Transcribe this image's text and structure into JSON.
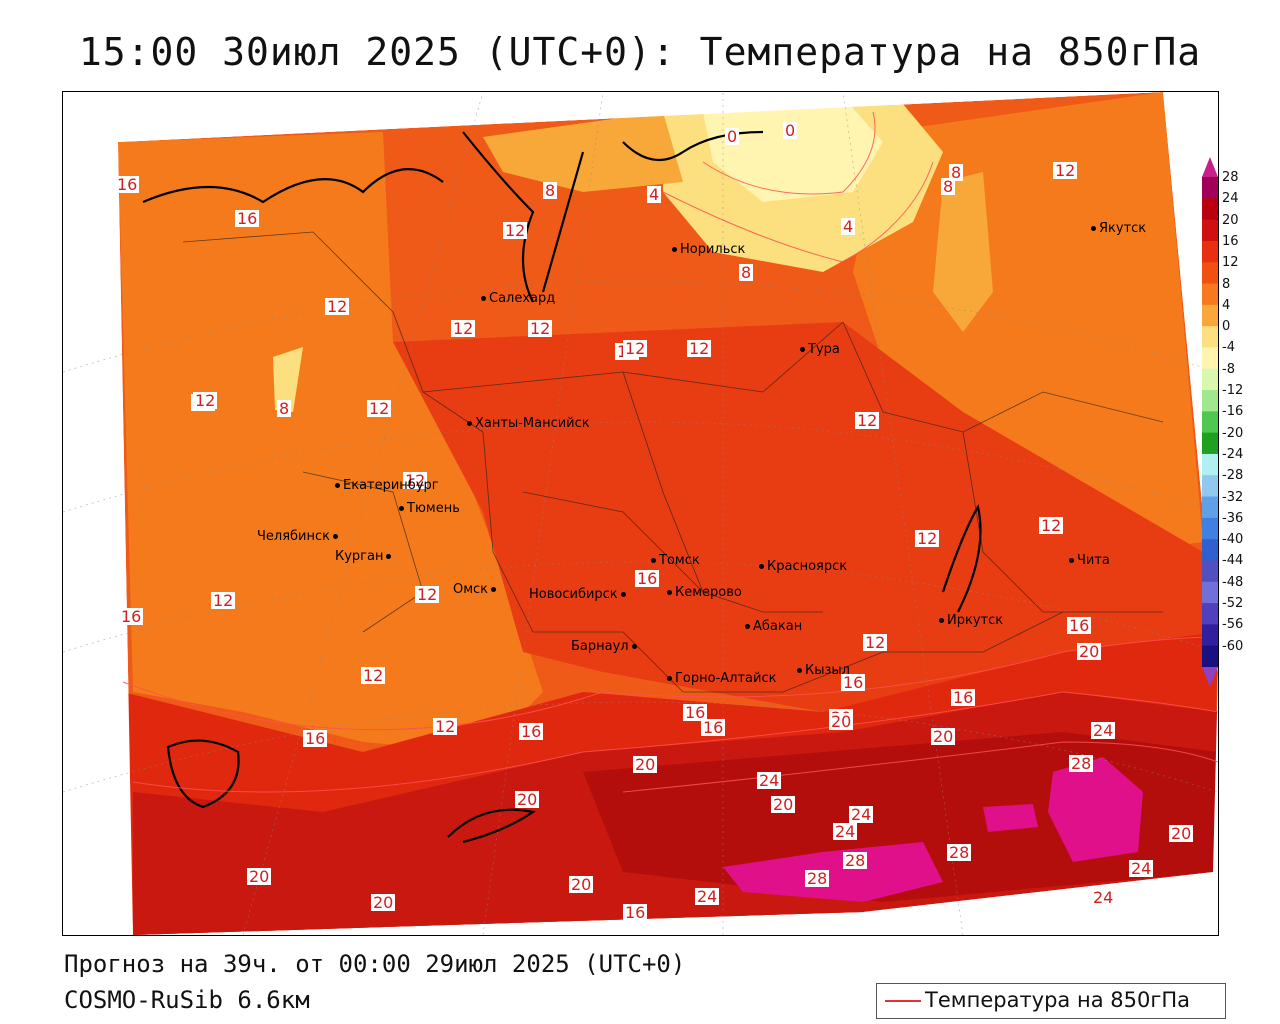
{
  "title": "15:00 30июл 2025 (UTC+0): Температура на 850гПа",
  "footer": {
    "forecast": "Прогноз на 39ч. от 00:00 29июл 2025 (UTC+0)",
    "model": "COSMO-RuSib 6.6км"
  },
  "legend": {
    "label": "Температура на 850гПа",
    "line_color": "#e83030"
  },
  "colorbar": {
    "ticks": [
      "28",
      "24",
      "20",
      "16",
      "12",
      "8",
      "4",
      "0",
      "-4",
      "-8",
      "-12",
      "-16",
      "-20",
      "-24",
      "-28",
      "-32",
      "-36",
      "-40",
      "-44",
      "-48",
      "-52",
      "-56",
      "-60"
    ],
    "colors": [
      "#a0005a",
      "#b8000e",
      "#d01010",
      "#e83010",
      "#f05010",
      "#f87820",
      "#f8a838",
      "#fce080",
      "#fff4b0",
      "#d8f8b0",
      "#a0e890",
      "#50c850",
      "#20a020",
      "#b0f0f0",
      "#90c8f0",
      "#60a0e8",
      "#4080e0",
      "#3060d0",
      "#5050c0",
      "#7070d8",
      "#5040c0",
      "#3020a0",
      "#1a1080"
    ],
    "top_arrow_color": "#c8208a",
    "bottom_arrow_color": "#9040c0"
  },
  "cities": [
    {
      "name": "Якутск"
    },
    {
      "name": "Норильск"
    },
    {
      "name": "Салехард"
    },
    {
      "name": "Тура"
    },
    {
      "name": "Ханты-Мансийск"
    },
    {
      "name": "Екатеринбург"
    },
    {
      "name": "Тюмень"
    },
    {
      "name": "Челябинск"
    },
    {
      "name": "Курган"
    },
    {
      "name": "Омск"
    },
    {
      "name": "Томск"
    },
    {
      "name": "Новосибирск"
    },
    {
      "name": "Кемерово"
    },
    {
      "name": "Красноярск"
    },
    {
      "name": "Абакан"
    },
    {
      "name": "Барнаул"
    },
    {
      "name": "Горно-Алтайск"
    },
    {
      "name": "Кызыл"
    },
    {
      "name": "Иркутск"
    },
    {
      "name": "Чита"
    }
  ],
  "isotherm_labels": [
    "16",
    "16",
    "12",
    "12",
    "12",
    "12",
    "12",
    "12",
    "12",
    "12",
    "12",
    "12",
    "12",
    "16",
    "12",
    "12",
    "16",
    "12",
    "12",
    "16",
    "20",
    "20",
    "20",
    "24",
    "20",
    "24",
    "24",
    "28",
    "28",
    "24",
    "20",
    "28",
    "20",
    "16",
    "16",
    "16",
    "20",
    "16",
    "16",
    "20",
    "24",
    "28",
    "24",
    "20",
    "20",
    "16",
    "24",
    "20",
    "8",
    "8",
    "12",
    "0",
    "0",
    "4",
    "8",
    "4",
    "8",
    "12",
    "12",
    "12",
    "12",
    "8",
    "16"
  ]
}
